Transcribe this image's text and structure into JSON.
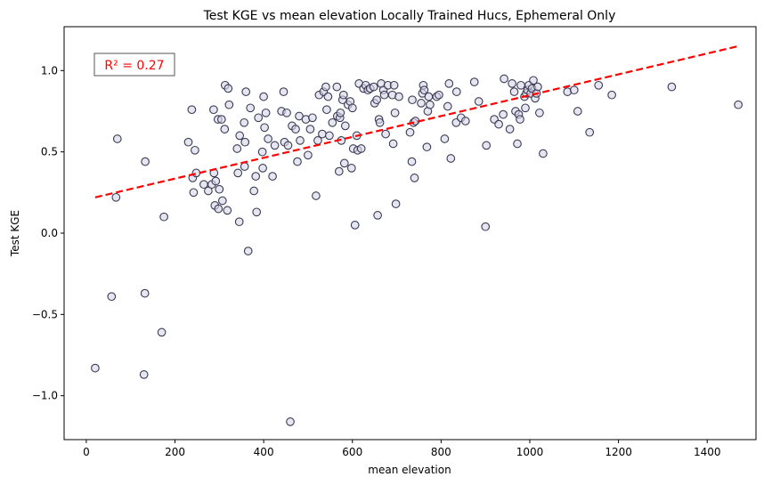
{
  "chart_data": {
    "type": "scatter",
    "title": "Test KGE vs mean elevation Locally Trained Hucs, Ephemeral Only",
    "xlabel": "mean elevation",
    "ylabel": "Test KGE",
    "xlim": [
      -50,
      1510
    ],
    "ylim": [
      -1.27,
      1.27
    ],
    "x_ticks": [
      0,
      200,
      400,
      600,
      800,
      1000,
      1200,
      1400
    ],
    "x_tick_labels": [
      "0",
      "200",
      "400",
      "600",
      "800",
      "1000",
      "1200",
      "1400"
    ],
    "y_ticks": [
      -1.0,
      -0.5,
      0.0,
      0.5,
      1.0
    ],
    "y_tick_labels": [
      "−1.0",
      "−0.5",
      "0.0",
      "0.5",
      "1.0"
    ],
    "grid": false,
    "annotation": "R² = 0.27",
    "annotation_position": "top-left",
    "marker_edge_color": "#3a3a55",
    "marker_face_color": "#d6d6e6",
    "trend_color": "#ff0000",
    "trend_line": {
      "x": [
        20,
        1470
      ],
      "y": [
        0.22,
        1.15
      ]
    },
    "points": [
      [
        20,
        -0.83
      ],
      [
        57,
        -0.39
      ],
      [
        67,
        0.22
      ],
      [
        70,
        0.58
      ],
      [
        130,
        -0.87
      ],
      [
        132,
        -0.37
      ],
      [
        133,
        0.44
      ],
      [
        170,
        -0.61
      ],
      [
        175,
        0.1
      ],
      [
        230,
        0.56
      ],
      [
        238,
        0.76
      ],
      [
        240,
        0.34
      ],
      [
        242,
        0.25
      ],
      [
        245,
        0.51
      ],
      [
        248,
        0.37
      ],
      [
        265,
        0.3
      ],
      [
        275,
        0.26
      ],
      [
        283,
        0.3
      ],
      [
        287,
        0.76
      ],
      [
        288,
        0.37
      ],
      [
        290,
        0.17
      ],
      [
        292,
        0.32
      ],
      [
        297,
        0.7
      ],
      [
        298,
        0.15
      ],
      [
        300,
        0.27
      ],
      [
        305,
        0.7
      ],
      [
        307,
        0.2
      ],
      [
        312,
        0.64
      ],
      [
        313,
        0.91
      ],
      [
        318,
        0.14
      ],
      [
        320,
        0.89
      ],
      [
        322,
        0.79
      ],
      [
        340,
        0.52
      ],
      [
        342,
        0.37
      ],
      [
        345,
        0.07
      ],
      [
        346,
        0.6
      ],
      [
        356,
        0.68
      ],
      [
        357,
        0.41
      ],
      [
        358,
        0.56
      ],
      [
        360,
        0.87
      ],
      [
        365,
        -0.11
      ],
      [
        370,
        0.77
      ],
      [
        378,
        0.26
      ],
      [
        382,
        0.35
      ],
      [
        384,
        0.13
      ],
      [
        388,
        0.71
      ],
      [
        397,
        0.5
      ],
      [
        398,
        0.4
      ],
      [
        400,
        0.84
      ],
      [
        402,
        0.65
      ],
      [
        405,
        0.74
      ],
      [
        410,
        0.58
      ],
      [
        420,
        0.35
      ],
      [
        425,
        0.54
      ],
      [
        440,
        0.75
      ],
      [
        445,
        0.87
      ],
      [
        447,
        0.56
      ],
      [
        452,
        0.74
      ],
      [
        455,
        0.54
      ],
      [
        460,
        -1.16
      ],
      [
        464,
        0.66
      ],
      [
        472,
        0.64
      ],
      [
        476,
        0.44
      ],
      [
        480,
        0.72
      ],
      [
        482,
        0.57
      ],
      [
        495,
        0.7
      ],
      [
        500,
        0.48
      ],
      [
        505,
        0.64
      ],
      [
        510,
        0.71
      ],
      [
        518,
        0.23
      ],
      [
        522,
        0.57
      ],
      [
        525,
        0.85
      ],
      [
        532,
        0.61
      ],
      [
        535,
        0.87
      ],
      [
        540,
        0.9
      ],
      [
        542,
        0.76
      ],
      [
        545,
        0.84
      ],
      [
        548,
        0.6
      ],
      [
        555,
        0.68
      ],
      [
        565,
        0.9
      ],
      [
        566,
        0.72
      ],
      [
        570,
        0.38
      ],
      [
        572,
        0.71
      ],
      [
        573,
        0.74
      ],
      [
        575,
        0.57
      ],
      [
        578,
        0.82
      ],
      [
        580,
        0.85
      ],
      [
        582,
        0.43
      ],
      [
        584,
        0.66
      ],
      [
        590,
        0.79
      ],
      [
        595,
        0.81
      ],
      [
        598,
        0.4
      ],
      [
        600,
        0.77
      ],
      [
        602,
        0.52
      ],
      [
        606,
        0.05
      ],
      [
        610,
        0.6
      ],
      [
        612,
        0.51
      ],
      [
        615,
        0.92
      ],
      [
        620,
        0.52
      ],
      [
        625,
        0.89
      ],
      [
        630,
        0.91
      ],
      [
        635,
        0.88
      ],
      [
        640,
        0.89
      ],
      [
        648,
        0.9
      ],
      [
        650,
        0.8
      ],
      [
        655,
        0.82
      ],
      [
        657,
        0.11
      ],
      [
        660,
        0.7
      ],
      [
        662,
        0.68
      ],
      [
        665,
        0.92
      ],
      [
        670,
        0.88
      ],
      [
        672,
        0.85
      ],
      [
        675,
        0.61
      ],
      [
        680,
        0.91
      ],
      [
        690,
        0.85
      ],
      [
        692,
        0.55
      ],
      [
        694,
        0.91
      ],
      [
        696,
        0.74
      ],
      [
        698,
        0.18
      ],
      [
        705,
        0.84
      ],
      [
        730,
        0.62
      ],
      [
        734,
        0.44
      ],
      [
        735,
        0.82
      ],
      [
        738,
        0.68
      ],
      [
        740,
        0.34
      ],
      [
        742,
        0.69
      ],
      [
        755,
        0.8
      ],
      [
        758,
        0.86
      ],
      [
        760,
        0.91
      ],
      [
        762,
        0.88
      ],
      [
        768,
        0.53
      ],
      [
        770,
        0.75
      ],
      [
        772,
        0.84
      ],
      [
        775,
        0.79
      ],
      [
        790,
        0.84
      ],
      [
        795,
        0.85
      ],
      [
        808,
        0.58
      ],
      [
        815,
        0.78
      ],
      [
        818,
        0.92
      ],
      [
        822,
        0.46
      ],
      [
        834,
        0.68
      ],
      [
        835,
        0.87
      ],
      [
        845,
        0.71
      ],
      [
        855,
        0.69
      ],
      [
        875,
        0.93
      ],
      [
        885,
        0.81
      ],
      [
        900,
        0.04
      ],
      [
        902,
        0.54
      ],
      [
        920,
        0.7
      ],
      [
        930,
        0.67
      ],
      [
        940,
        0.73
      ],
      [
        942,
        0.95
      ],
      [
        955,
        0.64
      ],
      [
        960,
        0.92
      ],
      [
        965,
        0.87
      ],
      [
        968,
        0.75
      ],
      [
        972,
        0.55
      ],
      [
        975,
        0.73
      ],
      [
        978,
        0.7
      ],
      [
        980,
        0.91
      ],
      [
        988,
        0.84
      ],
      [
        990,
        0.77
      ],
      [
        992,
        0.86
      ],
      [
        995,
        0.88
      ],
      [
        998,
        0.91
      ],
      [
        1002,
        0.86
      ],
      [
        1005,
        0.89
      ],
      [
        1008,
        0.94
      ],
      [
        1012,
        0.83
      ],
      [
        1015,
        0.86
      ],
      [
        1018,
        0.9
      ],
      [
        1022,
        0.74
      ],
      [
        1030,
        0.49
      ],
      [
        1085,
        0.87
      ],
      [
        1100,
        0.88
      ],
      [
        1108,
        0.75
      ],
      [
        1135,
        0.62
      ],
      [
        1155,
        0.91
      ],
      [
        1185,
        0.85
      ],
      [
        1320,
        0.9
      ],
      [
        1470,
        0.79
      ]
    ]
  }
}
